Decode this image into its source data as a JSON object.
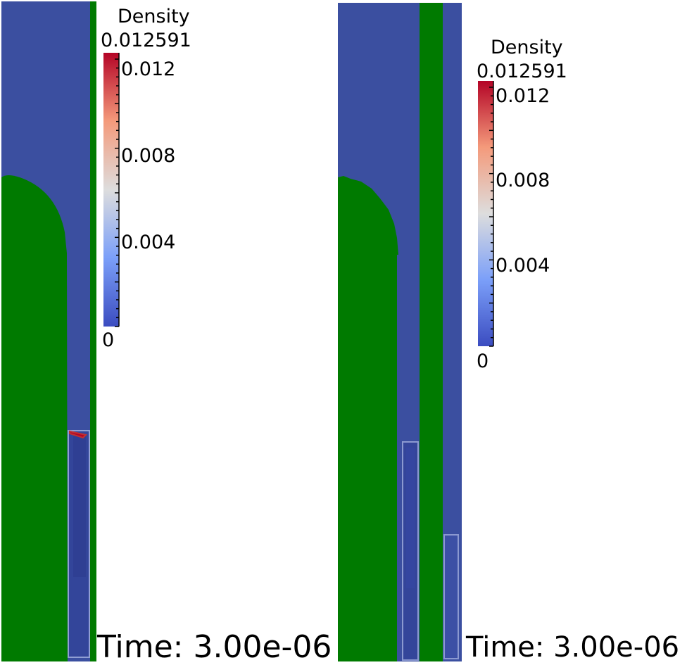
{
  "panels": [
    {
      "colorbar": {
        "title": "Density",
        "max_label": "0.012591",
        "min_label": "0",
        "ticks": [
          "0.012",
          "0.008",
          "0.004"
        ]
      },
      "time_label": "Time: 3.00e-06"
    },
    {
      "colorbar": {
        "title": "Density",
        "max_label": "0.012591",
        "min_label": "0",
        "ticks": [
          "0.012",
          "0.008",
          "0.004"
        ]
      },
      "time_label": "Time: 3.00e-06"
    }
  ],
  "colors": {
    "background_field": "#3b4fa0",
    "solid": "#007a00",
    "colormap_low": "#3b4cc0",
    "colormap_mid": "#dddddd",
    "colormap_high": "#b40426"
  }
}
